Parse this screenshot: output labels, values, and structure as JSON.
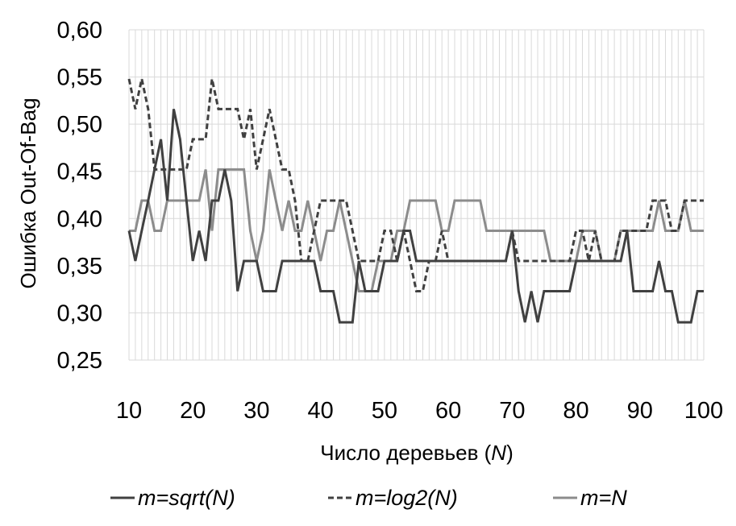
{
  "chart_data": {
    "type": "line",
    "title": "",
    "xlabel": "Число деревьев (N)",
    "xlabel_parts": {
      "text": "Число деревьев (",
      "var": "N",
      "close": ")"
    },
    "ylabel": "Ошибка Out-Of-Bag",
    "xlim": [
      10,
      100
    ],
    "ylim": [
      0.25,
      0.6
    ],
    "x_ticks": [
      "10",
      "20",
      "30",
      "40",
      "50",
      "60",
      "70",
      "80",
      "90",
      "100"
    ],
    "y_ticks": [
      "0,25",
      "0,30",
      "0,35",
      "0,40",
      "0,45",
      "0,50",
      "0,55",
      "0,60"
    ],
    "grid": true,
    "legend_position": "bottom",
    "x": [
      10,
      11,
      12,
      13,
      14,
      15,
      16,
      17,
      18,
      19,
      20,
      21,
      22,
      23,
      24,
      25,
      26,
      27,
      28,
      29,
      30,
      31,
      32,
      33,
      34,
      35,
      36,
      37,
      38,
      39,
      40,
      41,
      42,
      43,
      44,
      45,
      46,
      47,
      48,
      49,
      50,
      51,
      52,
      53,
      54,
      55,
      56,
      57,
      58,
      59,
      60,
      61,
      62,
      63,
      64,
      65,
      66,
      67,
      68,
      69,
      70,
      71,
      72,
      73,
      74,
      75,
      76,
      77,
      78,
      79,
      80,
      81,
      82,
      83,
      84,
      85,
      86,
      87,
      88,
      89,
      90,
      91,
      92,
      93,
      94,
      95,
      96,
      97,
      98,
      99,
      100
    ],
    "series": [
      {
        "name": "m=sqrt(N)",
        "color": "#404040",
        "dash": "solid",
        "values": [
          0.387,
          0.355,
          0.387,
          0.419,
          0.452,
          0.484,
          0.419,
          0.516,
          0.484,
          0.419,
          0.355,
          0.387,
          0.355,
          0.419,
          0.419,
          0.452,
          0.419,
          0.323,
          0.355,
          0.355,
          0.355,
          0.323,
          0.323,
          0.323,
          0.355,
          0.355,
          0.355,
          0.355,
          0.355,
          0.355,
          0.323,
          0.323,
          0.323,
          0.29,
          0.29,
          0.29,
          0.355,
          0.323,
          0.323,
          0.323,
          0.355,
          0.355,
          0.355,
          0.387,
          0.387,
          0.355,
          0.355,
          0.355,
          0.355,
          0.355,
          0.355,
          0.355,
          0.355,
          0.355,
          0.355,
          0.355,
          0.355,
          0.355,
          0.355,
          0.355,
          0.387,
          0.323,
          0.29,
          0.323,
          0.29,
          0.323,
          0.323,
          0.323,
          0.323,
          0.323,
          0.355,
          0.355,
          0.355,
          0.355,
          0.355,
          0.355,
          0.355,
          0.355,
          0.387,
          0.323,
          0.323,
          0.323,
          0.323,
          0.355,
          0.323,
          0.323,
          0.29,
          0.29,
          0.29,
          0.323,
          0.323
        ]
      },
      {
        "name": "m=log2(N)",
        "color": "#404040",
        "dash": "dashed",
        "values": [
          0.548,
          0.516,
          0.548,
          0.516,
          0.452,
          0.452,
          0.452,
          0.452,
          0.452,
          0.452,
          0.484,
          0.484,
          0.484,
          0.548,
          0.516,
          0.516,
          0.516,
          0.516,
          0.484,
          0.516,
          0.452,
          0.484,
          0.516,
          0.484,
          0.452,
          0.452,
          0.419,
          0.355,
          0.355,
          0.387,
          0.419,
          0.419,
          0.419,
          0.419,
          0.419,
          0.387,
          0.355,
          0.355,
          0.355,
          0.355,
          0.387,
          0.387,
          0.355,
          0.387,
          0.355,
          0.323,
          0.323,
          0.355,
          0.355,
          0.387,
          0.355,
          0.355,
          0.355,
          0.355,
          0.355,
          0.355,
          0.355,
          0.355,
          0.355,
          0.355,
          0.387,
          0.355,
          0.355,
          0.355,
          0.355,
          0.355,
          0.355,
          0.355,
          0.355,
          0.355,
          0.387,
          0.387,
          0.355,
          0.387,
          0.355,
          0.355,
          0.355,
          0.387,
          0.387,
          0.387,
          0.387,
          0.387,
          0.419,
          0.419,
          0.419,
          0.387,
          0.387,
          0.419,
          0.419,
          0.419,
          0.419
        ]
      },
      {
        "name": "m=N",
        "color": "#8c8c8c",
        "dash": "solid",
        "values": [
          0.387,
          0.387,
          0.419,
          0.419,
          0.387,
          0.387,
          0.419,
          0.419,
          0.419,
          0.419,
          0.419,
          0.419,
          0.452,
          0.387,
          0.452,
          0.452,
          0.452,
          0.452,
          0.452,
          0.387,
          0.355,
          0.387,
          0.452,
          0.419,
          0.387,
          0.419,
          0.387,
          0.387,
          0.419,
          0.387,
          0.355,
          0.387,
          0.387,
          0.419,
          0.387,
          0.355,
          0.323,
          0.323,
          0.323,
          0.355,
          0.355,
          0.355,
          0.387,
          0.387,
          0.419,
          0.419,
          0.419,
          0.419,
          0.419,
          0.387,
          0.387,
          0.419,
          0.419,
          0.419,
          0.419,
          0.419,
          0.387,
          0.387,
          0.387,
          0.387,
          0.387,
          0.387,
          0.387,
          0.387,
          0.387,
          0.387,
          0.355,
          0.355,
          0.355,
          0.355,
          0.355,
          0.387,
          0.387,
          0.387,
          0.355,
          0.355,
          0.355,
          0.387,
          0.387,
          0.387,
          0.387,
          0.387,
          0.387,
          0.419,
          0.387,
          0.387,
          0.387,
          0.419,
          0.387,
          0.387,
          0.387
        ]
      }
    ]
  }
}
